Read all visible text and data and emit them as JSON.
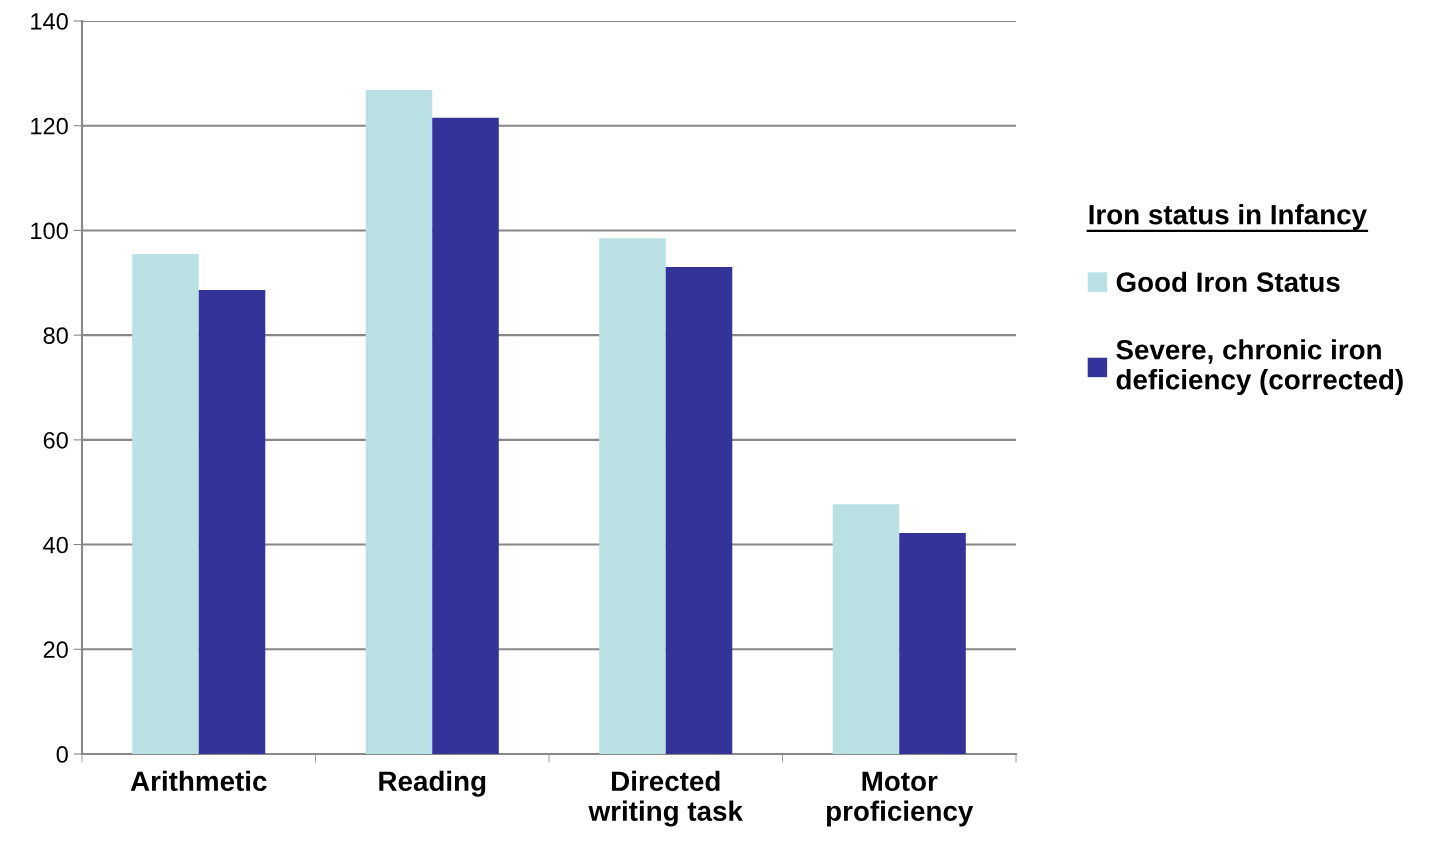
{
  "chart_data": {
    "type": "bar",
    "categories": [
      "Arithmetic",
      "Reading",
      "Directed\nwriting task",
      "Motor\nproficiency"
    ],
    "series": [
      {
        "name": "Good Iron Status",
        "color": "#b9e0e3",
        "values": [
          95.5,
          126.8,
          98.5,
          47.7
        ]
      },
      {
        "name": "Severe, chronic iron\ndeficiency (corrected)",
        "color": "#333399",
        "values": [
          88.6,
          121.5,
          93.0,
          42.2
        ]
      }
    ],
    "legend_title": "Iron status in Infancy",
    "ylim": [
      0,
      140
    ],
    "yticks": [
      0,
      20,
      40,
      60,
      80,
      100,
      120,
      140
    ],
    "grid": "y",
    "legend": "right"
  }
}
